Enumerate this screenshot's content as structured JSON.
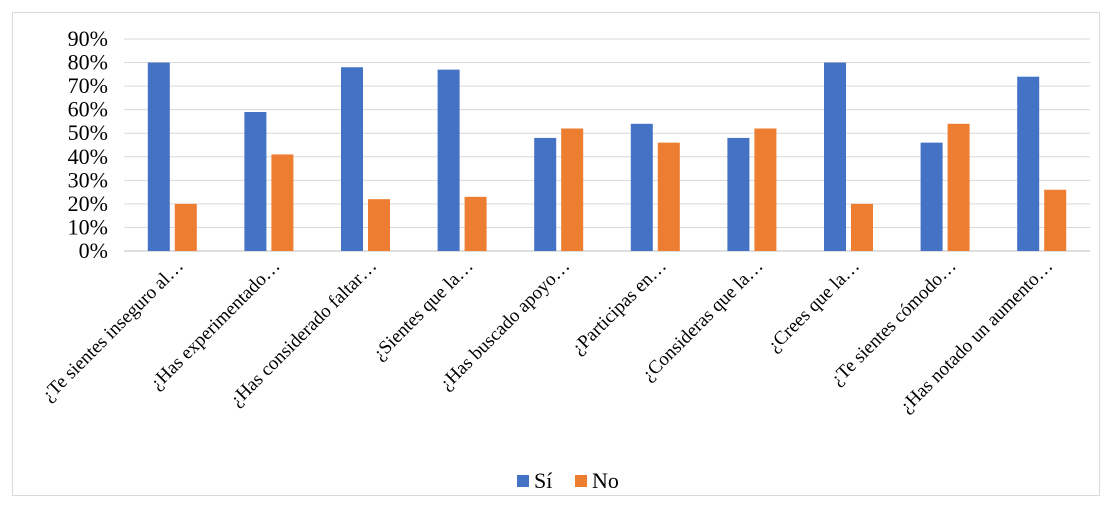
{
  "chart_data": {
    "type": "bar",
    "categories": [
      "¿Te sientes inseguro al…",
      "¿Has experimentado…",
      "¿Has considerado faltar…",
      "¿Sientes que la…",
      "¿Has buscado apoyo…",
      "¿Participas en…",
      "¿Consideras que la…",
      "¿Crees que la…",
      "¿Te sientes cómodo…",
      "¿Has notado un aumento…"
    ],
    "series": [
      {
        "name": "Sí",
        "color": "#4472C4",
        "values": [
          80,
          59,
          78,
          77,
          48,
          54,
          48,
          80,
          46,
          74
        ]
      },
      {
        "name": "No",
        "color": "#ED7D31",
        "values": [
          20,
          41,
          22,
          23,
          52,
          46,
          52,
          20,
          54,
          26
        ]
      }
    ],
    "ylim": [
      0,
      90
    ],
    "yticks": [
      "0%",
      "10%",
      "20%",
      "30%",
      "40%",
      "50%",
      "60%",
      "70%",
      "80%",
      "90%"
    ],
    "grid": true,
    "legend_position": "bottom",
    "title": "",
    "xlabel": "",
    "ylabel": ""
  }
}
